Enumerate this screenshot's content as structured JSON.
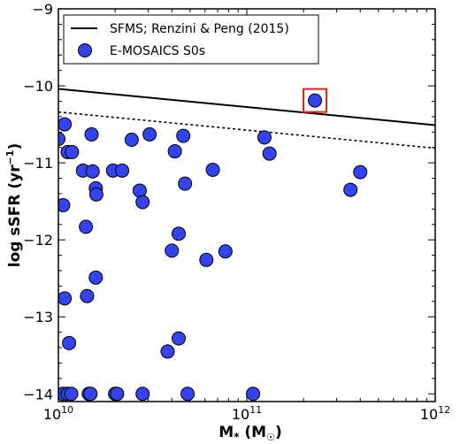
{
  "chart_data": {
    "type": "scatter",
    "xscale": "log",
    "xlim": [
      10000000000.0,
      1000000000000.0
    ],
    "ylim": [
      -14.1,
      -9
    ],
    "xlabel_main": "M",
    "xlabel_sub": "*",
    "xlabel_open": " (M",
    "xlabel_sun": "☉",
    "xlabel_close": ")",
    "ylabel_main": "log sSFR (yr",
    "ylabel_sup": "−1",
    "ylabel_close": ")",
    "ytick_labels": [
      {
        "value": -9,
        "label": "−9"
      },
      {
        "value": -10,
        "label": "−10"
      },
      {
        "value": -11,
        "label": "−11"
      },
      {
        "value": -12,
        "label": "−12"
      },
      {
        "value": -13,
        "label": "−13"
      },
      {
        "value": -14,
        "label": "−14"
      }
    ],
    "xtick_labels": [
      {
        "value": 10000000000.0,
        "base": "10",
        "exp": "10"
      },
      {
        "value": 100000000000.0,
        "base": "10",
        "exp": "11"
      },
      {
        "value": 1000000000000.0,
        "base": "10",
        "exp": "12"
      }
    ],
    "legend": {
      "placement": "top-left",
      "items": [
        {
          "label": "SFMS; Renzini & Peng (2015)",
          "kind": "line"
        },
        {
          "label": "E-MOSAICS S0s",
          "kind": "marker"
        }
      ]
    },
    "lines": [
      {
        "name": "SFMS; Renzini & Peng (2015)",
        "style": "solid",
        "x": [
          10000000000.0,
          1000000000000.0
        ],
        "y": [
          -10.04,
          -10.51
        ]
      },
      {
        "kind": "offset",
        "style": "dotted",
        "x": [
          10000000000.0,
          1000000000000.0
        ],
        "y": [
          -10.34,
          -10.81
        ]
      }
    ],
    "series": [
      {
        "name": "E-MOSAICS S0s",
        "color": "#3344ee",
        "points": [
          [
            10000000000.0,
            -10.69
          ],
          [
            10800000000.0,
            -10.5
          ],
          [
            11200000000.0,
            -10.86
          ],
          [
            11800000000.0,
            -10.86
          ],
          [
            10600000000.0,
            -11.55
          ],
          [
            10800000000.0,
            -12.76
          ],
          [
            11400000000.0,
            -13.34
          ],
          [
            10600000000.0,
            -14.0
          ],
          [
            11200000000.0,
            -14.0
          ],
          [
            11700000000.0,
            -14.0
          ],
          [
            13500000000.0,
            -11.1
          ],
          [
            14000000000.0,
            -11.83
          ],
          [
            14200000000.0,
            -12.73
          ],
          [
            14500000000.0,
            -14.0
          ],
          [
            14800000000.0,
            -14.0
          ],
          [
            15000000000.0,
            -10.63
          ],
          [
            15200000000.0,
            -11.11
          ],
          [
            15800000000.0,
            -11.33
          ],
          [
            15900000000.0,
            -11.41
          ],
          [
            15800000000.0,
            -12.49
          ],
          [
            19500000000.0,
            -11.1
          ],
          [
            20000000000.0,
            -14.0
          ],
          [
            20500000000.0,
            -14.0
          ],
          [
            21800000000.0,
            -11.1
          ],
          [
            24500000000.0,
            -10.7
          ],
          [
            27000000000.0,
            -11.36
          ],
          [
            28000000000.0,
            -11.51
          ],
          [
            28000000000.0,
            -14.0
          ],
          [
            30500000000.0,
            -10.63
          ],
          [
            38000000000.0,
            -13.45
          ],
          [
            40000000000.0,
            -12.14
          ],
          [
            41500000000.0,
            -10.85
          ],
          [
            43500000000.0,
            -11.92
          ],
          [
            43500000000.0,
            -13.28
          ],
          [
            46000000000.0,
            -10.65
          ],
          [
            47000000000.0,
            -11.27
          ],
          [
            48500000000.0,
            -14.0
          ],
          [
            61000000000.0,
            -12.26
          ],
          [
            66000000000.0,
            -11.09
          ],
          [
            77000000000.0,
            -12.15
          ],
          [
            108000000000.0,
            -14.0
          ],
          [
            124000000000.0,
            -10.67
          ],
          [
            132000000000.0,
            -10.88
          ],
          [
            230000000000.0,
            -10.19
          ],
          [
            355000000000.0,
            -11.35
          ],
          [
            400000000000.0,
            -11.12
          ]
        ],
        "highlight_index": 43,
        "highlight_color": "#e02020"
      }
    ]
  }
}
